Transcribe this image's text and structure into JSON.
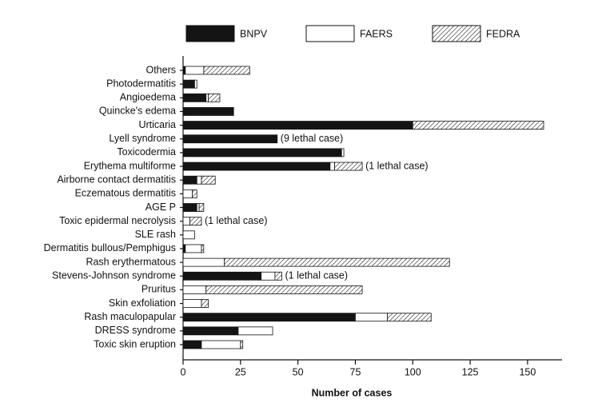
{
  "chart_data": {
    "type": "bar",
    "orientation": "horizontal",
    "stacked": true,
    "xlabel": "Number of cases",
    "categories": [
      "Others",
      "Photodermatitis",
      "Angioedema",
      "Quincke's edema",
      "Urticaria",
      "Lyell syndrome",
      "Toxicodermia",
      "Erythema multiforme",
      "Airborne contact dermatitis",
      "Eczematous dermatitis",
      "AGE P",
      "Toxic epidermal necrolysis",
      "SLE rash",
      "Dermatitis bullous/Pemphigus",
      "Rash erythermatous",
      "Stevens-Johnson syndrome",
      "Pruritus",
      "Skin exfoliation",
      "Rash maculopapular",
      "DRESS syndrome",
      "Toxic skin eruption"
    ],
    "series": [
      {
        "name": "BNPV",
        "color": "#141414",
        "hatch": false,
        "values": [
          1,
          5,
          10,
          22,
          100,
          41,
          69,
          64,
          6,
          0,
          6,
          0,
          0,
          1,
          0,
          34,
          0,
          0,
          75,
          24,
          8
        ]
      },
      {
        "name": "FAERS",
        "color": "#ffffff",
        "hatch": false,
        "values": [
          8,
          1,
          1,
          0,
          0,
          0,
          1,
          2,
          2,
          4,
          1,
          3,
          5,
          7,
          18,
          6,
          10,
          8,
          14,
          15,
          17
        ]
      },
      {
        "name": "FEDRA",
        "color": "#ffffff",
        "hatch": true,
        "values": [
          20,
          0,
          5,
          0,
          57,
          0,
          0,
          12,
          6,
          2,
          2,
          5,
          0,
          1,
          98,
          3,
          68,
          3,
          19,
          0,
          1
        ]
      }
    ],
    "annotations": [
      null,
      null,
      null,
      null,
      null,
      "(9 lethal case)",
      null,
      "(1 lethal case)",
      null,
      null,
      null,
      "(1 lethal case)",
      null,
      null,
      null,
      "(1 lethal case)",
      null,
      null,
      null,
      null,
      null
    ],
    "xlim": [
      0,
      165
    ],
    "xticks": [
      0,
      25,
      50,
      75,
      100,
      125,
      150
    ],
    "legend": "top"
  }
}
